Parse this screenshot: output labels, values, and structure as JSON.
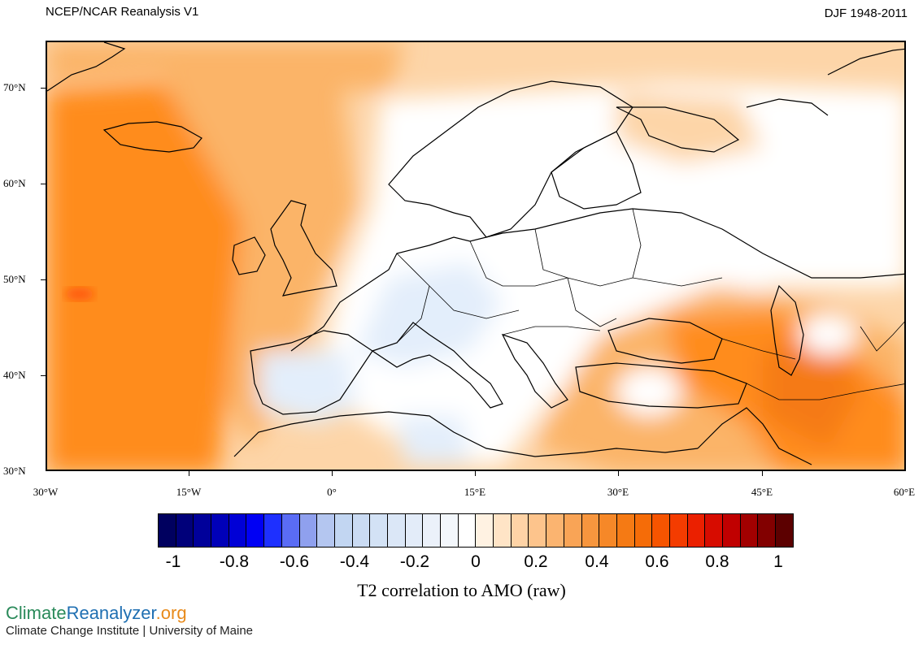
{
  "header": {
    "dataset_title": "NCEP/NCAR Reanalysis V1",
    "season_range": "DJF 1948-2011"
  },
  "map": {
    "lat_labels": [
      "70°N",
      "60°N",
      "50°N",
      "40°N",
      "30°N"
    ],
    "lon_labels": [
      "30°W",
      "15°W",
      "0°",
      "15°E",
      "30°E",
      "45°E",
      "60°E"
    ],
    "colors": {
      "ocean_strong": "#ff8c1a",
      "ocean_mid": "#fbb468",
      "ocean_light": "#fdd5a8",
      "neutral": "#ffffff",
      "negative_light": "#e3eefb",
      "positive_peak": "#ff5a0a",
      "coast": "#000000"
    }
  },
  "colorbar": {
    "title": "T2 correlation to AMO (raw)",
    "tick_labels": [
      "-1",
      "-0.8",
      "-0.6",
      "-0.4",
      "-0.2",
      "0",
      "0.2",
      "0.4",
      "0.6",
      "0.8",
      "1"
    ],
    "swatches": [
      "#00005f",
      "#00007a",
      "#00009a",
      "#0000b8",
      "#0000d6",
      "#0000f4",
      "#1e30ff",
      "#5a6cf5",
      "#8fa0ee",
      "#b4c6f0",
      "#c2d6f2",
      "#cadbf3",
      "#d3e2f5",
      "#dbe7f7",
      "#e3ecf9",
      "#ebf1fa",
      "#f3f7fc",
      "#ffffff",
      "#fff2e2",
      "#ffe4c6",
      "#fed3a6",
      "#fdc48c",
      "#fbb470",
      "#f9a456",
      "#f7963e",
      "#f68828",
      "#f57a14",
      "#f56c08",
      "#f65400",
      "#f43c00",
      "#eb2000",
      "#d70c00",
      "#c00000",
      "#a20000",
      "#820000",
      "#5c0000"
    ]
  },
  "footer": {
    "logo_part1": "Climate",
    "logo_part2": "Reanalyzer",
    "logo_part3": ".org",
    "institution": "Climate Change Institute | University of Maine"
  }
}
